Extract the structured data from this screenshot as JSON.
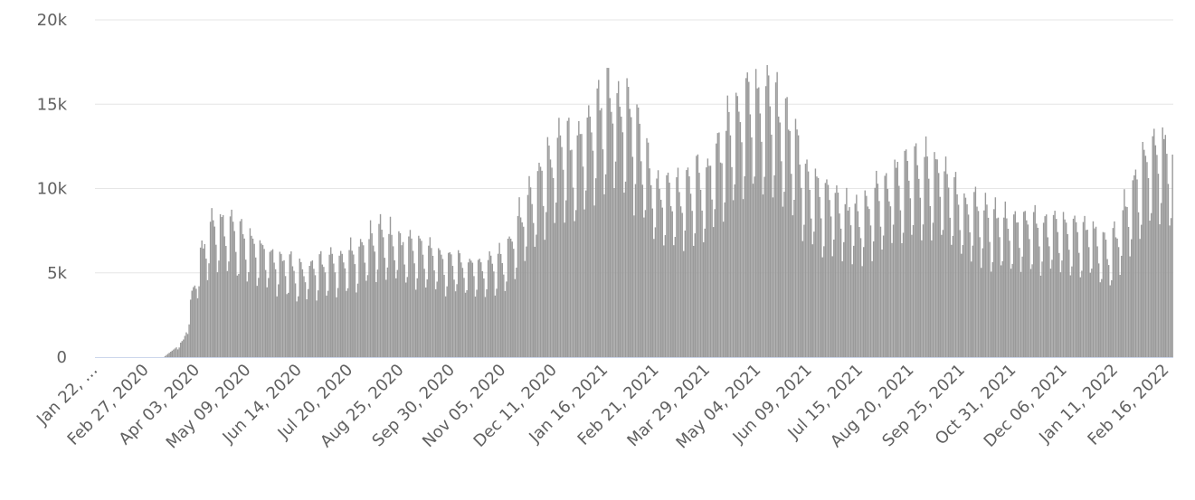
{
  "chart_data": {
    "type": "bar",
    "title": "",
    "xlabel": "",
    "ylabel": "",
    "ylim": [
      0,
      20000
    ],
    "grid": true,
    "legend": "none",
    "bar_color": "#9a9a9a",
    "start_date": "2020-01-22",
    "end_date": "2022-02-20",
    "y_ticks": [
      {
        "value": 0,
        "label": "0"
      },
      {
        "value": 5000,
        "label": "5k"
      },
      {
        "value": 10000,
        "label": "10k"
      },
      {
        "value": 15000,
        "label": "15k"
      },
      {
        "value": 20000,
        "label": "20k"
      }
    ],
    "x_tick_labels": [
      "Jan 22, …",
      "Feb 27, 2020",
      "Apr 03, 2020",
      "May 09, 2020",
      "Jun 14, 2020",
      "Jul 20, 2020",
      "Aug 25, 2020",
      "Sep 30, 2020",
      "Nov 05, 2020",
      "Dec 11, 2020",
      "Jan 16, 2021",
      "Feb 21, 2021",
      "Mar 29, 2021",
      "May 04, 2021",
      "Jun 09, 2021",
      "Jul 15, 2021",
      "Aug 20, 2021",
      "Sep 25, 2021",
      "Oct 31, 2021",
      "Dec 06, 2021",
      "Jan 11, 2022",
      "Feb 16, 2022"
    ],
    "weekly_trend": {
      "dates": [
        "2020-01-22",
        "2020-03-10",
        "2020-03-24",
        "2020-04-03",
        "2020-04-10",
        "2020-04-20",
        "2020-05-09",
        "2020-06-01",
        "2020-06-14",
        "2020-07-20",
        "2020-08-10",
        "2020-08-25",
        "2020-09-30",
        "2020-10-20",
        "2020-11-05",
        "2020-11-15",
        "2020-12-11",
        "2020-12-25",
        "2021-01-06",
        "2021-01-20",
        "2021-02-01",
        "2021-02-21",
        "2021-03-10",
        "2021-03-29",
        "2021-04-15",
        "2021-04-28",
        "2021-05-10",
        "2021-05-25",
        "2021-06-09",
        "2021-06-20",
        "2021-07-15",
        "2021-08-05",
        "2021-08-20",
        "2021-09-01",
        "2021-09-15",
        "2021-09-25",
        "2021-10-31",
        "2021-12-06",
        "2021-12-25",
        "2022-01-05",
        "2022-01-11",
        "2022-01-20",
        "2022-02-01",
        "2022-02-10",
        "2022-02-20"
      ],
      "weekday_values": [
        0,
        0,
        900,
        4800,
        6900,
        7300,
        6300,
        5300,
        4800,
        5600,
        6800,
        6300,
        5300,
        5000,
        5500,
        7400,
        11500,
        11600,
        13100,
        14500,
        13500,
        9300,
        9000,
        10300,
        12900,
        13900,
        14400,
        12700,
        9300,
        8800,
        7800,
        9500,
        10300,
        10400,
        9600,
        8200,
        7300,
        7100,
        6900,
        5800,
        6600,
        8500,
        10800,
        11700,
        10800
      ]
    }
  }
}
